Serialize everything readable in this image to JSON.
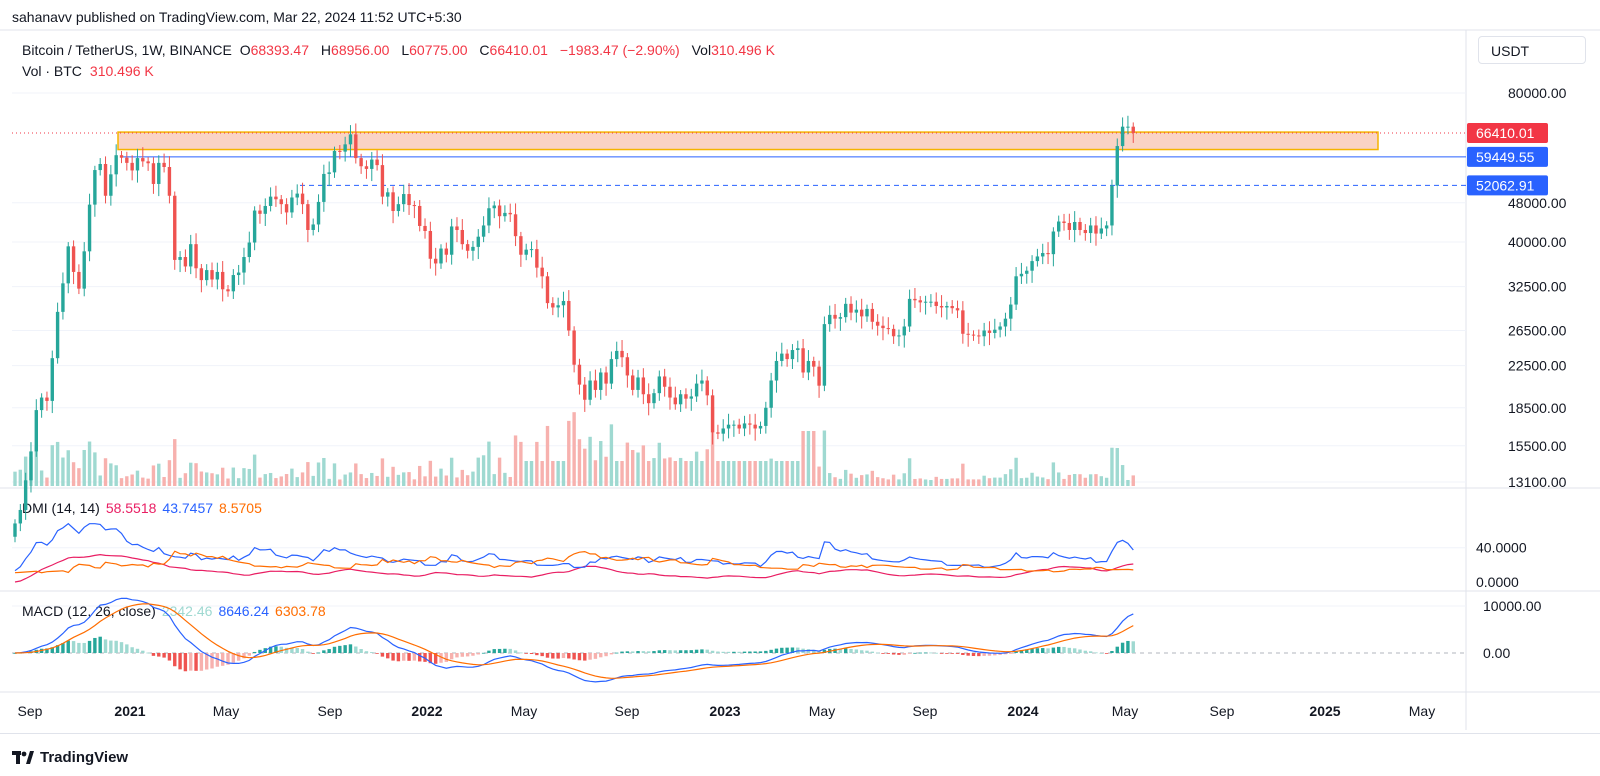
{
  "header": {
    "published": "sahanavv published on TradingView.com, Mar 22, 2024 11:52 UTC+5:30"
  },
  "legend": {
    "symbol": "Bitcoin / TetherUS, 1W, BINANCE",
    "open_label": "O",
    "open": "68393.47",
    "high_label": "H",
    "high": "68956.00",
    "low_label": "L",
    "low": "60775.00",
    "close_label": "C",
    "close": "66410.01",
    "change": "−1983.47 (−2.90%)",
    "vol_label": "Vol",
    "vol": "310.496 K",
    "vol_line_label": "Vol · BTC",
    "vol_line_value": "310.496 K"
  },
  "currency_button": "USDT",
  "dmi": {
    "title": "DMI (14, 14)",
    "plus": "58.5518",
    "minus": "43.7457",
    "adx": "8.5705"
  },
  "macd": {
    "title": "MACD (12, 26, close)",
    "hist": "2342.46",
    "macd": "8646.24",
    "signal": "6303.78"
  },
  "brand": "TradingView",
  "colors": {
    "up": "#26a69a",
    "down": "#ef5350",
    "up_vol": "#9fd9d1",
    "down_vol": "#f7b1ae",
    "level_blue": "#2962ff",
    "zone_fill": "#f9c8b5",
    "zone_border": "#f5b400",
    "dmi_plus": "#e91e63",
    "dmi_minus": "#2962ff",
    "adx": "#ff6d00",
    "macd_line": "#2962ff",
    "signal_line": "#ff6d00"
  },
  "chart_data": {
    "type": "candlestick",
    "interval": "1W",
    "y_scale": "log",
    "price_axis_ticks": [
      "80000.00",
      "66410.01",
      "59449.55",
      "52062.91",
      "48000.00",
      "40000.00",
      "32500.00",
      "26500.00",
      "22500.00",
      "18500.00",
      "15500.00",
      "13100.00"
    ],
    "axis_ticks": [
      80000,
      48000,
      40000,
      32500,
      26500,
      22500,
      18500,
      15500,
      13100
    ],
    "price_labels": [
      {
        "value": 66410.01,
        "label": "66410.01",
        "color": "#f23645"
      },
      {
        "value": 59449.55,
        "label": "59449.55",
        "color": "#2962ff"
      },
      {
        "value": 52062.91,
        "label": "52062.91",
        "color": "#2962ff"
      }
    ],
    "resistance_zone": [
      61500,
      66700
    ],
    "levels": [
      {
        "value": 59449.55,
        "style": "solid",
        "color": "#2962ff"
      },
      {
        "value": 52062.91,
        "style": "dashed",
        "color": "#2962ff"
      }
    ],
    "last_price": 66410.01,
    "time_axis": [
      "Sep",
      "2021",
      "May",
      "Sep",
      "2022",
      "May",
      "Sep",
      "2023",
      "May",
      "Sep",
      "2024",
      "May",
      "Sep",
      "2025",
      "May"
    ],
    "time_axis_bold": [
      "2021",
      "2022",
      "2023",
      "2024",
      "2025"
    ],
    "closes": [
      10800,
      11500,
      13200,
      15100,
      18300,
      19400,
      19100,
      23300,
      28900,
      33000,
      39200,
      34800,
      32200,
      38300,
      47600,
      55900,
      57500,
      49600,
      54800,
      59900,
      59200,
      57800,
      55800,
      59100,
      58200,
      57700,
      52400,
      57800,
      56700,
      49600,
      36800,
      37300,
      35700,
      39600,
      35400,
      33500,
      35100,
      33600,
      34800,
      32100,
      31800,
      34300,
      34700,
      37300,
      39900,
      46300,
      45600,
      47300,
      49400,
      48800,
      47700,
      45900,
      49200,
      50100,
      47700,
      42300,
      43400,
      48200,
      54900,
      55300,
      61100,
      60900,
      63000,
      66000,
      59100,
      56900,
      56200,
      58700,
      57200,
      49400,
      50400,
      46200,
      47700,
      50000,
      47500,
      47300,
      43100,
      42100,
      37000,
      36200,
      38800,
      37700,
      43000,
      42300,
      39600,
      38400,
      39100,
      41000,
      43200,
      46800,
      47400,
      45100,
      45800,
      45500,
      41100,
      37700,
      38600,
      38700,
      35500,
      34100,
      30100,
      29500,
      29800,
      30400,
      26500,
      22600,
      20600,
      19200,
      21000,
      20100,
      21800,
      20700,
      23200,
      24100,
      23400,
      21500,
      20100,
      21300,
      19700,
      18900,
      19800,
      21400,
      20400,
      19400,
      18800,
      19700,
      19300,
      19500,
      20700,
      21000,
      19600,
      16500,
      16400,
      16800,
      17100,
      17100,
      16800,
      17200,
      17100,
      16800,
      17000,
      18500,
      21000,
      23000,
      23800,
      23200,
      24200,
      24400,
      21800,
      23000,
      22400,
      20500,
      27300,
      28500,
      28000,
      28200,
      30000,
      28800,
      29200,
      28300,
      29300,
      27600,
      27100,
      26800,
      26700,
      25800,
      25900,
      27000,
      30700,
      30500,
      30200,
      30300,
      30300,
      29700,
      29500,
      29700,
      29400,
      29100,
      26100,
      26000,
      25900,
      25800,
      26500,
      26200,
      26600,
      27000,
      28000,
      29900,
      34100,
      34500,
      35000,
      36600,
      37400,
      38000,
      37800,
      42000,
      44000,
      43700,
      42300,
      43900,
      42300,
      41700,
      43200,
      41600,
      42600,
      43200,
      52000,
      62500,
      68400,
      68400,
      66410
    ]
  },
  "dmi_axis": [
    "40.0000",
    "0.0000"
  ],
  "macd_axis": [
    "10000.00",
    "0.00"
  ]
}
